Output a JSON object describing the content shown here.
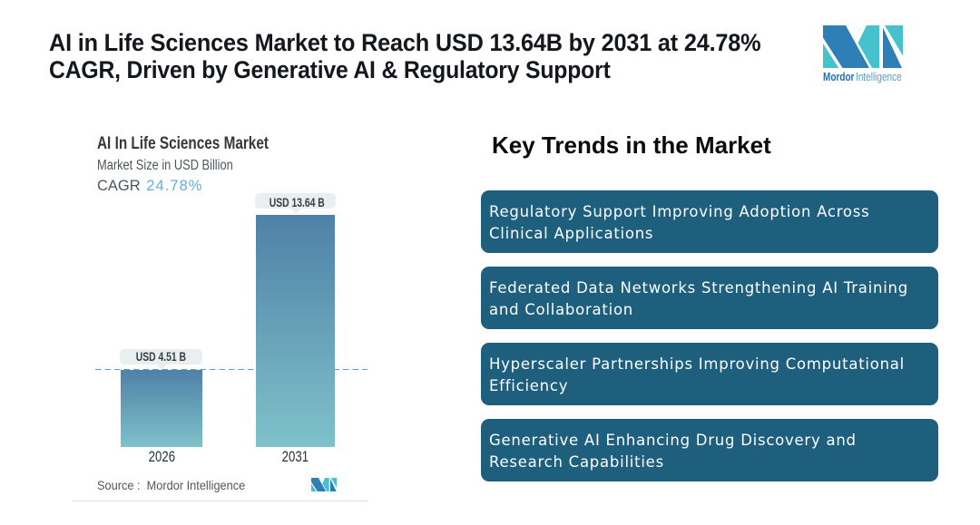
{
  "header": {
    "title_line1": "AI in Life Sciences Market to Reach USD 13.64B by 2031 at 24.78%",
    "title_line2": "CAGR, Driven by Generative AI & Regulatory Support"
  },
  "logo": {
    "brand_bold": "Mordor",
    "brand_light": "Intelligence",
    "teal": "#45c2cc",
    "blue": "#2d7fb5"
  },
  "chart_data": {
    "type": "bar",
    "title": "AI In Life Sciences Market",
    "subtitle": "Market Size in USD Billion",
    "cagr_label": "CAGR",
    "cagr_value": "24.78%",
    "categories": [
      "2026",
      "2031"
    ],
    "values": [
      4.51,
      13.64
    ],
    "unit": "USD Billion",
    "bar_labels": [
      "USD 4.51 B",
      "USD 13.64 B"
    ],
    "reference_line_value": 4.51,
    "bar_gradient_top": "#4f81a7",
    "bar_gradient_bottom": "#7fc2ca",
    "dashed_line_color": "#6197cb",
    "source_label": "Source :",
    "source_value": "Mordor Intelligence",
    "ylim": [
      0,
      13.64
    ],
    "legend": "none",
    "grid": "off"
  },
  "trends": {
    "heading": "Key Trends in the Market",
    "box_color": "#1d5f7d",
    "items": [
      {
        "line1": "Regulatory Support Improving Adoption Across",
        "line2": "Clinical Applications"
      },
      {
        "line1": "Federated Data Networks Strengthening AI Training",
        "line2": "and Collaboration"
      },
      {
        "line1": "Hyperscaler Partnerships Improving Computational",
        "line2": "Efficiency"
      },
      {
        "line1": "Generative AI Enhancing Drug Discovery and",
        "line2": "Research Capabilities"
      }
    ]
  }
}
